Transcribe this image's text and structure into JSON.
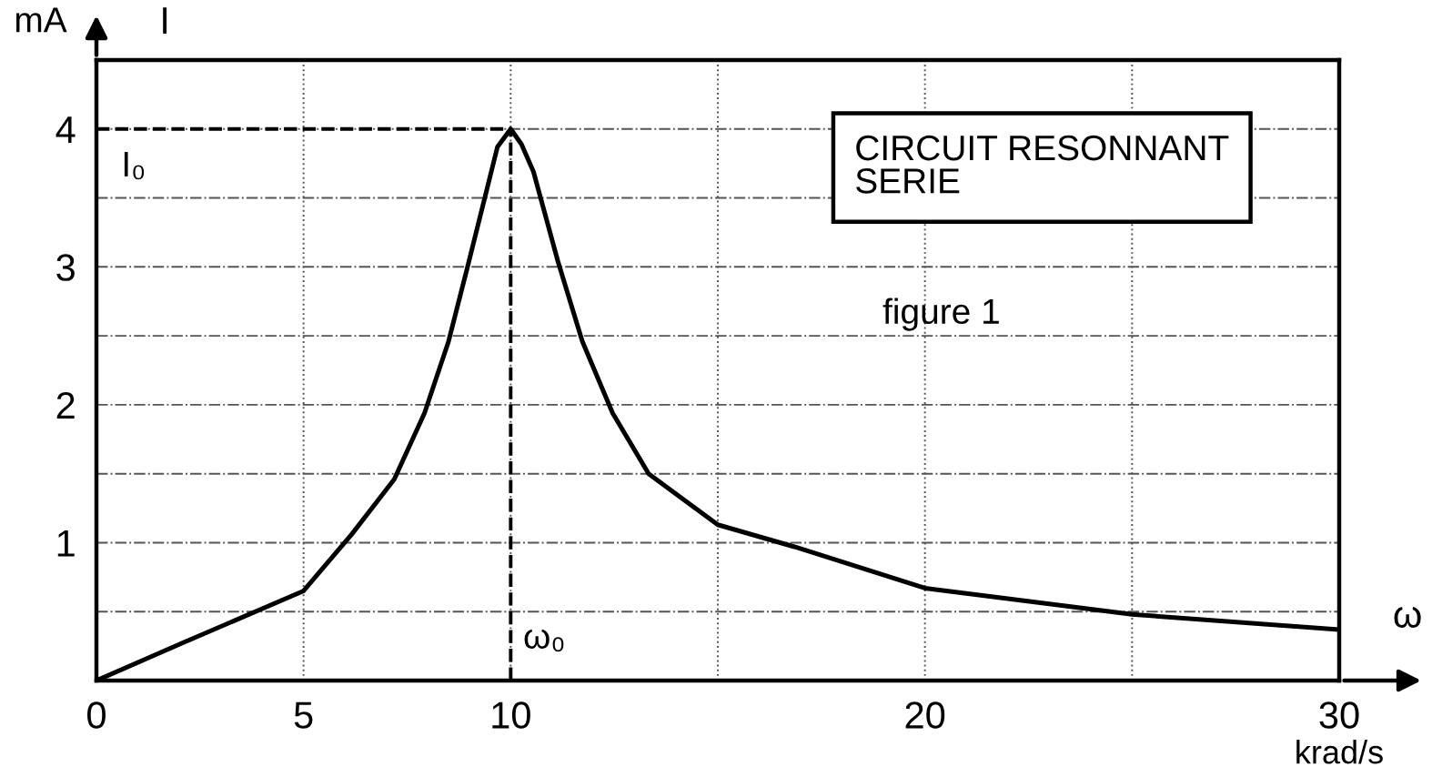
{
  "chart_data": {
    "type": "line",
    "xlabel": "ω",
    "ylabel": "I",
    "x": [
      0,
      2.06,
      5,
      6.16,
      7.19,
      7.92,
      8.5,
      8.95,
      9.39,
      9.68,
      10,
      10.26,
      10.55,
      11.14,
      11.73,
      12.46,
      13.33,
      15,
      16.85,
      20,
      25,
      30
    ],
    "series": [
      {
        "color": "#000000",
        "values": [
          0,
          0.27,
          0.65,
          1.06,
          1.46,
          1.94,
          2.46,
          2.99,
          3.52,
          3.87,
          4.0,
          3.89,
          3.69,
          3.04,
          2.46,
          1.94,
          1.5,
          1.13,
          0.97,
          0.67,
          0.48,
          0.37
        ]
      }
    ],
    "xlim": [
      0,
      30
    ],
    "ylim": [
      0,
      4.5
    ],
    "xticks": [
      0,
      5,
      10,
      {
        "value": 15,
        "label": null
      },
      20,
      {
        "value": 25,
        "label": null
      },
      30
    ],
    "yticks": [
      {
        "value": 0,
        "label": null
      },
      {
        "value": 0.5,
        "label": null
      },
      1,
      {
        "value": 1.5,
        "label": null
      },
      2,
      {
        "value": 2.5,
        "label": null
      },
      3,
      {
        "value": 3.5,
        "label": null
      },
      4
    ],
    "grid": true,
    "line_style": "solid",
    "marker": "none",
    "ref_lines": [
      {
        "axis": "y",
        "value": 4,
        "label": "I₀",
        "line_style": "dashed"
      },
      {
        "axis": "x",
        "value": 10,
        "label": "ω₀",
        "line_style": "dashed"
      }
    ],
    "annotations": [
      "CIRCUIT RESONNANT\nSERIE",
      "figure 1",
      "mA",
      "krad/s"
    ]
  }
}
